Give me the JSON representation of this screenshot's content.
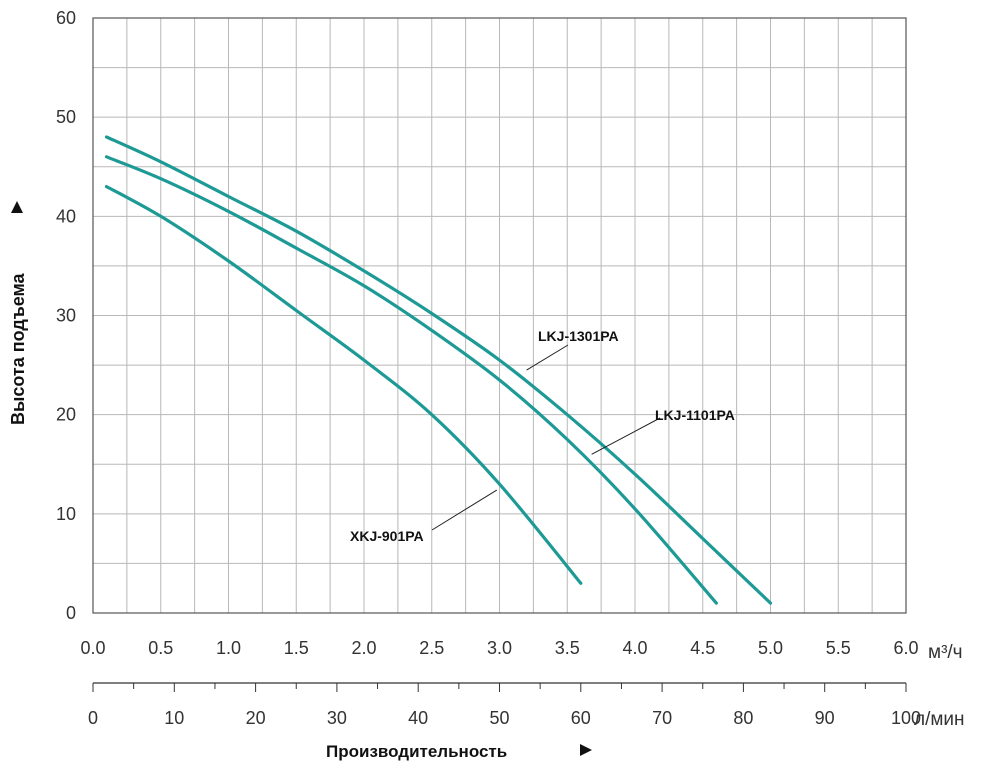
{
  "chart_data": {
    "type": "line",
    "xlabel": "Производительность",
    "ylabel": "Высота подъема",
    "x_unit": "м³/ч",
    "x2_unit": "л/мин",
    "xlim": [
      0,
      6
    ],
    "ylim": [
      0,
      60
    ],
    "x2lim": [
      0,
      100
    ],
    "x_ticks": [
      "0.0",
      "0.5",
      "1.0",
      "1.5",
      "2.0",
      "2.5",
      "3.0",
      "3.5",
      "4.0",
      "4.5",
      "5.0",
      "5.5",
      "6.0"
    ],
    "y_ticks": [
      "0",
      "10",
      "20",
      "30",
      "40",
      "50",
      "60"
    ],
    "x2_ticks": [
      "0",
      "10",
      "20",
      "30",
      "40",
      "50",
      "60",
      "70",
      "80",
      "90",
      "100"
    ],
    "grid": true,
    "series": [
      {
        "name": "LKJ-1301PA",
        "color": "#1d9a96",
        "x": [
          0.1,
          0.5,
          1.0,
          1.5,
          2.0,
          2.5,
          3.0,
          3.5,
          4.0,
          4.5,
          5.0
        ],
        "y": [
          48,
          45.5,
          42,
          38.5,
          34.5,
          30.2,
          25.5,
          20,
          14,
          7.5,
          1
        ]
      },
      {
        "name": "LKJ-1101PA",
        "color": "#1d9a96",
        "x": [
          0.1,
          0.5,
          1.0,
          1.5,
          2.0,
          2.5,
          3.0,
          3.5,
          4.0,
          4.6
        ],
        "y": [
          46,
          43.8,
          40.5,
          36.8,
          33,
          28.5,
          23.5,
          17.5,
          10.5,
          1
        ]
      },
      {
        "name": "XKJ-901PA",
        "color": "#1d9a96",
        "x": [
          0.1,
          0.5,
          1.0,
          1.5,
          2.0,
          2.5,
          3.0,
          3.6
        ],
        "y": [
          43,
          40,
          35.5,
          30.5,
          25.5,
          20,
          13,
          3
        ]
      }
    ]
  }
}
